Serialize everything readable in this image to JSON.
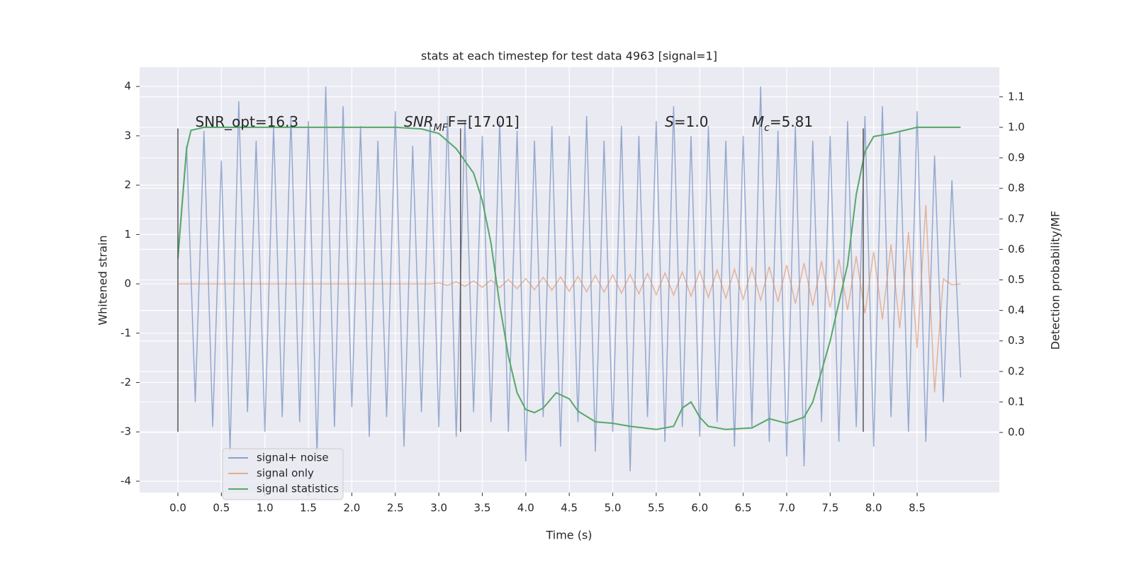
{
  "chart_data": {
    "type": "line",
    "title": "stats at each timestep for test data 4963 [signal=1]",
    "xlabel": "Time (s)",
    "ylabel": "Whitened strain",
    "y2label": "Detection probability/MF",
    "xlim": [
      -0.44,
      9.445
    ],
    "ylim": [
      -4.23,
      4.39
    ],
    "y2lim": [
      -0.197,
      1.197
    ],
    "xticks": [
      {
        "value": 0,
        "label": "0.0"
      },
      0.5,
      {
        "value": 1,
        "label": "1.0"
      },
      1.5,
      {
        "value": 2,
        "label": "2.0"
      },
      2.5,
      {
        "value": 3,
        "label": "3.0"
      },
      3.5,
      {
        "value": 4,
        "label": "4.0"
      },
      4.5,
      {
        "value": 5,
        "label": "5.0"
      },
      5.5,
      {
        "value": 6,
        "label": "6.0"
      },
      6.5,
      {
        "value": 7,
        "label": "7.0"
      },
      7.5,
      {
        "value": 8,
        "label": "8.0"
      },
      8.5
    ],
    "yticks": [
      -4,
      -3,
      -2,
      -1,
      0,
      1,
      2,
      3,
      4
    ],
    "y2ticks": [
      {
        "value": 0,
        "label": "0.0"
      },
      0.1,
      0.2,
      0.3,
      0.4,
      0.5,
      0.6,
      0.7,
      0.8,
      0.9,
      {
        "value": 1,
        "label": "1.0"
      },
      1.1
    ],
    "grid": true,
    "legend": "lower left",
    "x": [
      0,
      0.1,
      0.2,
      0.3,
      0.4,
      0.5,
      0.6,
      0.7,
      0.8,
      0.9,
      1,
      1.1,
      1.2,
      1.3,
      1.4,
      1.5,
      1.6,
      1.7,
      1.8,
      1.9,
      2,
      2.1,
      2.2,
      2.3,
      2.4,
      2.5,
      2.6,
      2.7,
      2.8,
      2.9,
      3,
      3.1,
      3.2,
      3.3,
      3.4,
      3.5,
      3.6,
      3.7,
      3.8,
      3.9,
      4,
      4.1,
      4.2,
      4.3,
      4.4,
      4.5,
      4.6,
      4.7,
      4.8,
      4.9,
      5,
      5.1,
      5.2,
      5.3,
      5.4,
      5.5,
      5.6,
      5.7,
      5.8,
      5.9,
      6,
      6.1,
      6.2,
      6.3,
      6.4,
      6.5,
      6.6,
      6.7,
      6.8,
      6.9,
      7,
      7.1,
      7.2,
      7.3,
      7.4,
      7.5,
      7.6,
      7.7,
      7.8,
      7.9,
      8,
      8.1,
      8.2,
      8.3,
      8.4,
      8.5,
      8.6,
      8.7,
      8.8,
      8.9,
      9
    ],
    "series": [
      {
        "name": "signal+ noise",
        "color": "#4c72b0",
        "values": [
          0.6,
          2.8,
          -2.4,
          3.1,
          -2.9,
          2.5,
          -3.4,
          3.7,
          -2.6,
          2.9,
          -3.0,
          3.2,
          -2.7,
          3.4,
          -2.8,
          3.3,
          -3.5,
          4.0,
          -2.9,
          3.6,
          -2.5,
          3.2,
          -3.1,
          2.9,
          -2.7,
          3.5,
          -3.3,
          2.8,
          -2.6,
          3.2,
          -2.9,
          3.4,
          -3.1,
          3.3,
          -2.6,
          3.0,
          -2.8,
          3.3,
          -3.0,
          3.1,
          -3.6,
          2.9,
          -2.7,
          3.2,
          -3.3,
          3.0,
          -2.8,
          3.4,
          -3.4,
          2.9,
          -3.0,
          3.2,
          -3.8,
          3.0,
          -2.7,
          3.3,
          -3.2,
          3.6,
          -2.9,
          3.0,
          -3.1,
          3.2,
          -2.8,
          2.9,
          -3.3,
          3.0,
          -2.9,
          4.0,
          -3.2,
          3.1,
          -3.5,
          3.2,
          -3.7,
          2.9,
          -2.8,
          3.0,
          -3.2,
          3.3,
          -2.9,
          3.4,
          -3.3,
          3.6,
          -2.7,
          3.1,
          -3.0,
          3.5,
          -3.2,
          2.6,
          -2.4,
          2.1,
          -1.9
        ]
      },
      {
        "name": "signal only",
        "color": "#dd8452",
        "values": [
          0,
          0,
          0,
          0,
          0,
          0,
          0,
          0,
          0,
          0,
          0,
          0,
          0,
          0,
          0,
          0,
          0,
          0,
          0,
          0,
          0,
          0,
          0,
          0,
          0,
          0,
          0,
          0,
          0,
          0,
          0.02,
          -0.03,
          0.04,
          -0.05,
          0.06,
          -0.07,
          0.08,
          -0.08,
          0.09,
          -0.1,
          0.11,
          -0.12,
          0.13,
          -0.13,
          0.14,
          -0.15,
          0.15,
          -0.16,
          0.17,
          -0.17,
          0.18,
          -0.19,
          0.19,
          -0.2,
          0.21,
          -0.22,
          0.22,
          -0.23,
          0.24,
          -0.25,
          0.26,
          -0.27,
          0.28,
          -0.29,
          0.3,
          -0.31,
          0.32,
          -0.33,
          0.35,
          -0.36,
          0.38,
          -0.4,
          0.42,
          -0.44,
          0.46,
          -0.48,
          0.5,
          -0.53,
          0.56,
          -0.6,
          0.65,
          -0.72,
          0.8,
          -0.9,
          1.05,
          -1.3,
          1.6,
          -2.2,
          0.1,
          -0.02,
          0
        ]
      },
      {
        "name": "signal statistics",
        "color": "#55a868",
        "axis": "y2",
        "x": [
          0,
          0.05,
          0.1,
          0.15,
          0.3,
          0.5,
          1.0,
          2.0,
          2.5,
          2.8,
          3.0,
          3.2,
          3.4,
          3.5,
          3.6,
          3.7,
          3.8,
          3.9,
          4.0,
          4.1,
          4.2,
          4.35,
          4.5,
          4.6,
          4.8,
          5.0,
          5.2,
          5.5,
          5.7,
          5.8,
          5.9,
          6.0,
          6.1,
          6.3,
          6.6,
          6.8,
          7.0,
          7.2,
          7.3,
          7.5,
          7.7,
          7.8,
          7.9,
          8.0,
          8.2,
          8.5,
          9.0
        ],
        "values": [
          0.57,
          0.75,
          0.93,
          0.99,
          1.0,
          1.0,
          1.0,
          1.0,
          1.0,
          0.995,
          0.98,
          0.93,
          0.85,
          0.76,
          0.62,
          0.42,
          0.25,
          0.13,
          0.075,
          0.065,
          0.08,
          0.13,
          0.11,
          0.07,
          0.035,
          0.03,
          0.02,
          0.01,
          0.02,
          0.08,
          0.1,
          0.05,
          0.02,
          0.01,
          0.015,
          0.045,
          0.03,
          0.05,
          0.1,
          0.3,
          0.55,
          0.78,
          0.92,
          0.97,
          0.98,
          1.0,
          1.0
        ]
      }
    ],
    "vlines": {
      "x": [
        0,
        3.25,
        7.88
      ],
      "ymin": -3,
      "ymax": 3.15,
      "color": "#555555"
    },
    "annotations": [
      {
        "x": 0.2,
        "y": 3.27,
        "parts": [
          {
            "text": "SNR_opt=16.3"
          }
        ]
      },
      {
        "x": 2.6,
        "y": 3.27,
        "parts": [
          {
            "text": "SNR",
            "italic": true
          },
          {
            "text": "MF",
            "italic": true,
            "sub": true
          },
          {
            "text": "F=[17.01]"
          }
        ]
      },
      {
        "x": 5.6,
        "y": 3.27,
        "parts": [
          {
            "text": "S",
            "italic": true
          },
          {
            "text": "=1.0"
          }
        ]
      },
      {
        "x": 6.6,
        "y": 3.27,
        "parts": [
          {
            "text": "M",
            "italic": true
          },
          {
            "text": "c",
            "italic": true,
            "sub": true
          },
          {
            "text": "=5.81"
          }
        ]
      }
    ]
  }
}
